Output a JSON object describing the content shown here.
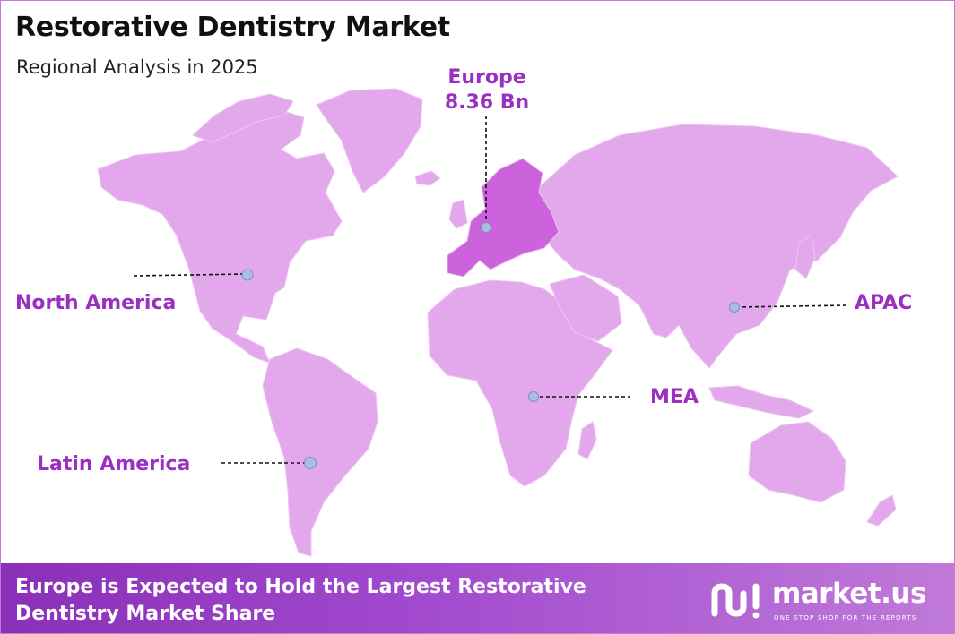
{
  "header": {
    "title": "Restorative Dentistry Market",
    "subtitle": "Regional Analysis in 2025"
  },
  "regions": {
    "north_america": {
      "label": "North America"
    },
    "europe": {
      "label": "Europe",
      "value": "8.36 Bn"
    },
    "apac": {
      "label": "APAC"
    },
    "mea": {
      "label": "MEA"
    },
    "latin_america": {
      "label": "Latin America"
    }
  },
  "footer": {
    "headline": "Europe is Expected to Hold the Largest Restorative Dentistry Market Share"
  },
  "brand": {
    "name": "market.us",
    "tagline": "ONE STOP SHOP FOR THE REPORTS"
  },
  "colors": {
    "land": "#e3a8ec",
    "highlight": "#cc62dc",
    "label": "#9b2fc1",
    "marker": "#a9bde6",
    "footer_start": "#8a2fb8",
    "footer_end": "#c07ad8"
  },
  "icons": {
    "brand_logo": "market-us-logo-icon"
  }
}
